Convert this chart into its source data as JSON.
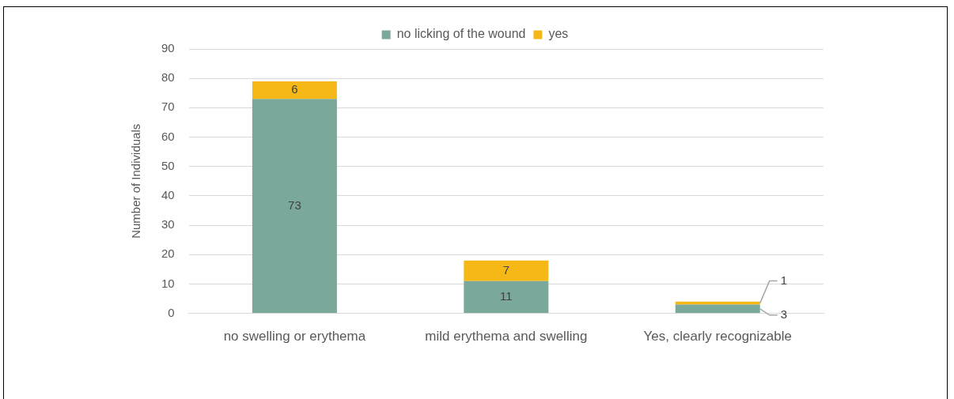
{
  "chart_data": {
    "type": "bar",
    "stacked": true,
    "ylabel": "Number of Individuals",
    "categories": [
      "no swelling or erythema",
      "mild erythema and swelling",
      "Yes, clearly recognizable"
    ],
    "series": [
      {
        "name": "no licking of the wound",
        "color": "#7aa89b",
        "values": [
          73,
          11,
          3
        ]
      },
      {
        "name": "yes",
        "color": "#f5b817",
        "values": [
          6,
          7,
          1
        ]
      }
    ],
    "ylim": [
      0,
      90
    ],
    "yticks": [
      0,
      10,
      20,
      30,
      40,
      50,
      60,
      70,
      80,
      90
    ],
    "grid": "y",
    "legend": "top",
    "data_labels": true
  }
}
